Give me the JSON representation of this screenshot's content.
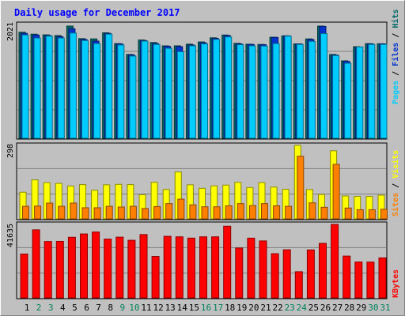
{
  "chart_data": [
    {
      "type": "bar",
      "title": "Daily usage for December 2017",
      "categories": [
        "1",
        "2",
        "3",
        "4",
        "5",
        "6",
        "7",
        "8",
        "9",
        "10",
        "11",
        "12",
        "13",
        "14",
        "15",
        "16",
        "17",
        "18",
        "19",
        "20",
        "21",
        "22",
        "23",
        "24",
        "25",
        "26",
        "27",
        "28",
        "29",
        "30",
        "31"
      ],
      "weekend_days": [
        "2",
        "3",
        "9",
        "10",
        "16",
        "17",
        "23",
        "24",
        "30",
        "31"
      ],
      "ymax_label": "2021",
      "ymax": 2021,
      "series": [
        {
          "name": "Hits",
          "color": "#006666",
          "values": [
            1910,
            1875,
            1863,
            1850,
            2021,
            1795,
            1790,
            1900,
            1705,
            1510,
            1770,
            1725,
            1665,
            1665,
            1695,
            1735,
            1810,
            1860,
            1710,
            1695,
            1690,
            1820,
            1845,
            1700,
            1790,
            2021,
            1510,
            1395,
            1650,
            1705,
            1703
          ]
        },
        {
          "name": "Files",
          "color": "#0033cc",
          "values": [
            1890,
            1860,
            1850,
            1830,
            1972,
            1780,
            1750,
            1890,
            1700,
            1500,
            1760,
            1705,
            1655,
            1650,
            1680,
            1720,
            1800,
            1850,
            1700,
            1690,
            1685,
            1818,
            1845,
            1700,
            1780,
            2015,
            1500,
            1385,
            1640,
            1700,
            1700
          ]
        },
        {
          "name": "Pages",
          "color": "#00ccff",
          "values": [
            1860,
            1805,
            1840,
            1805,
            1895,
            1760,
            1705,
            1875,
            1680,
            1480,
            1750,
            1690,
            1620,
            1560,
            1665,
            1700,
            1780,
            1825,
            1685,
            1665,
            1660,
            1705,
            1840,
            1690,
            1745,
            1885,
            1490,
            1350,
            1645,
            1690,
            1690
          ]
        }
      ]
    },
    {
      "type": "bar",
      "categories": [
        "1",
        "2",
        "3",
        "4",
        "5",
        "6",
        "7",
        "8",
        "9",
        "10",
        "11",
        "12",
        "13",
        "14",
        "15",
        "16",
        "17",
        "18",
        "19",
        "20",
        "21",
        "22",
        "23",
        "24",
        "25",
        "26",
        "27",
        "28",
        "29",
        "30",
        "31"
      ],
      "ymax_label": "298",
      "ymax": 298,
      "series": [
        {
          "name": "Visits",
          "color": "#ffff00",
          "values": [
            108,
            158,
            147,
            144,
            133,
            139,
            116,
            138,
            140,
            139,
            98,
            148,
            119,
            190,
            138,
            124,
            134,
            137,
            148,
            127,
            147,
            129,
            120,
            298,
            119,
            99,
            276,
            93,
            91,
            91,
            96
          ]
        },
        {
          "name": "Sites",
          "color": "#ff8000",
          "values": [
            51,
            52,
            64,
            51,
            64,
            45,
            45,
            51,
            48,
            51,
            42,
            50,
            62,
            80,
            57,
            49,
            49,
            53,
            62,
            54,
            62,
            53,
            51,
            254,
            65,
            47,
            221,
            44,
            37,
            37,
            39
          ]
        }
      ]
    },
    {
      "type": "bar",
      "categories": [
        "1",
        "2",
        "3",
        "4",
        "5",
        "6",
        "7",
        "8",
        "9",
        "10",
        "11",
        "12",
        "13",
        "14",
        "15",
        "16",
        "17",
        "18",
        "19",
        "20",
        "21",
        "22",
        "23",
        "24",
        "25",
        "26",
        "27",
        "28",
        "29",
        "30",
        "31"
      ],
      "ymax_label": "41635",
      "ymax": 41635,
      "series": [
        {
          "name": "KBytes",
          "color": "#ff0000",
          "values": [
            24850,
            38550,
            31940,
            32020,
            34350,
            36230,
            37320,
            33320,
            34410,
            32640,
            35880,
            23480,
            34880,
            34600,
            33870,
            34600,
            34590,
            40610,
            28250,
            33840,
            32270,
            25040,
            27240,
            14820,
            27180,
            30890,
            41635,
            23670,
            20340,
            20290,
            22670
          ]
        }
      ]
    }
  ]
}
